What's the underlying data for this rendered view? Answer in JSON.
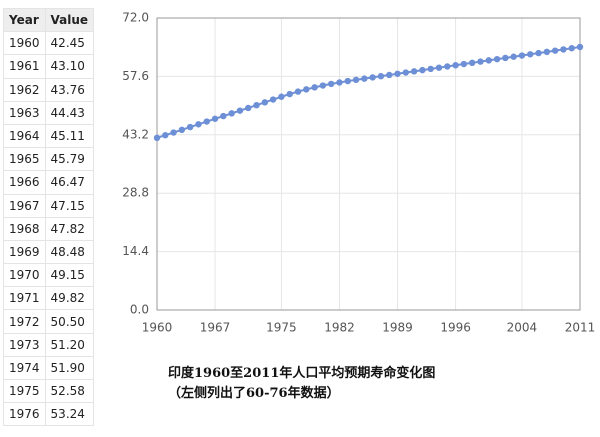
{
  "table": {
    "header": [
      "Year",
      "Value"
    ],
    "rows": [
      [
        "1960",
        "42.45"
      ],
      [
        "1961",
        "43.10"
      ],
      [
        "1962",
        "43.76"
      ],
      [
        "1963",
        "44.43"
      ],
      [
        "1964",
        "45.11"
      ],
      [
        "1965",
        "45.79"
      ],
      [
        "1966",
        "46.47"
      ],
      [
        "1967",
        "47.15"
      ],
      [
        "1968",
        "47.82"
      ],
      [
        "1969",
        "48.48"
      ],
      [
        "1970",
        "49.15"
      ],
      [
        "1971",
        "49.82"
      ],
      [
        "1972",
        "50.50"
      ],
      [
        "1973",
        "51.20"
      ],
      [
        "1974",
        "51.90"
      ],
      [
        "1975",
        "52.58"
      ],
      [
        "1976",
        "53.24"
      ]
    ]
  },
  "chart_data": {
    "type": "line",
    "x": [
      1960,
      1961,
      1962,
      1963,
      1964,
      1965,
      1966,
      1967,
      1968,
      1969,
      1970,
      1971,
      1972,
      1973,
      1974,
      1975,
      1976,
      1977,
      1978,
      1979,
      1980,
      1981,
      1982,
      1983,
      1984,
      1985,
      1986,
      1987,
      1988,
      1989,
      1990,
      1991,
      1992,
      1993,
      1994,
      1995,
      1996,
      1997,
      1998,
      1999,
      2000,
      2001,
      2002,
      2003,
      2004,
      2005,
      2006,
      2007,
      2008,
      2009,
      2010,
      2011
    ],
    "series": [
      {
        "color": "#6d8fd6",
        "values": [
          42.45,
          43.1,
          43.76,
          44.43,
          45.11,
          45.79,
          46.47,
          47.15,
          47.82,
          48.48,
          49.15,
          49.82,
          50.5,
          51.2,
          51.9,
          52.58,
          53.24,
          53.85,
          54.4,
          54.9,
          55.35,
          55.75,
          56.1,
          56.45,
          56.75,
          57.05,
          57.35,
          57.65,
          57.95,
          58.25,
          58.55,
          58.85,
          59.15,
          59.45,
          59.75,
          60.05,
          60.35,
          60.65,
          60.95,
          61.25,
          61.55,
          61.85,
          62.15,
          62.45,
          62.75,
          63.05,
          63.35,
          63.65,
          63.95,
          64.25,
          64.55,
          64.85
        ]
      }
    ],
    "xlim": [
      1960,
      2011
    ],
    "xticks": [
      1960,
      1967,
      1975,
      1982,
      1989,
      1996,
      2004,
      2011
    ],
    "ylim": [
      0,
      72
    ],
    "yticks": [
      {
        "value": 0,
        "label": "0.0"
      },
      {
        "value": 14.4,
        "label": "14.4"
      },
      {
        "value": 28.8,
        "label": "28.8"
      },
      {
        "value": 43.2,
        "label": "43.2"
      },
      {
        "value": 57.6,
        "label": "57.6"
      },
      {
        "value": 72,
        "label": "72.0"
      }
    ],
    "grid": true
  },
  "caption": [
    "印度1960至2011年人口平均预期寿命变化图",
    "（左侧列出了60-76年数据）"
  ]
}
